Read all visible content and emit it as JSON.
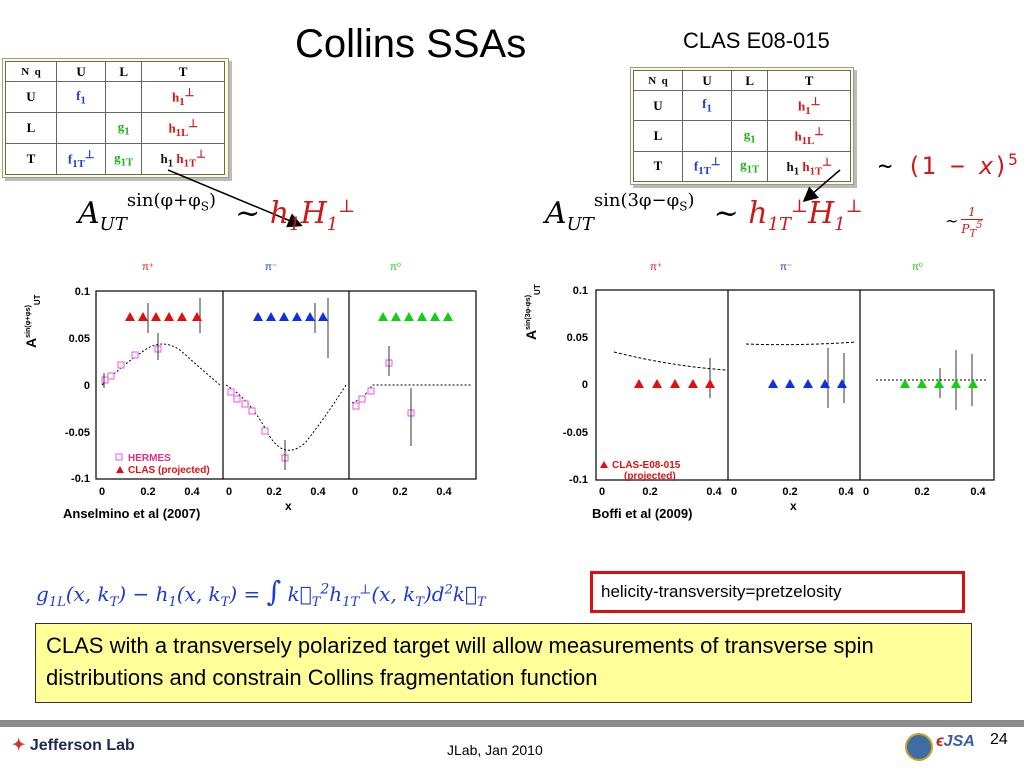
{
  "title": "Collins SSAs",
  "experiment": "CLAS E08-015",
  "table": {
    "header": [
      "N",
      "q",
      "U",
      "L",
      "T"
    ],
    "rows": [
      {
        "label": "U",
        "cells": [
          "f1",
          "",
          "h1⊥"
        ]
      },
      {
        "label": "L",
        "cells": [
          "",
          "g1",
          "h1L⊥"
        ]
      },
      {
        "label": "T",
        "cells": [
          "f1T⊥",
          "g1T",
          "h1  h1T⊥"
        ]
      }
    ]
  },
  "formula_left": "A_UT^{sin(φ+φS)} ~ h1 H1⊥",
  "formula_right": "A_UT^{sin(3φ−φS)} ~ h1T⊥ H1⊥",
  "scaling1": "~ (1 − x)^5",
  "scaling2": "~ 1/P_T^5",
  "left_plot": {
    "citation": "Anselmino et al (2007)",
    "panels": [
      "π+",
      "π-",
      "π0"
    ],
    "ylabel": "A_UT^sin(φ+φs)",
    "xlabel": "x",
    "yticks": [
      "0.1",
      "0.05",
      "0",
      "-0.05",
      "-0.1"
    ],
    "xticks": [
      "0",
      "0.2",
      "0.4"
    ],
    "legend": [
      "HERMES",
      "CLAS (projected)"
    ]
  },
  "right_plot": {
    "citation": "Boffi et al (2009)",
    "panels": [
      "π+",
      "π-",
      "π0"
    ],
    "ylabel": "A_UT^sin(3φ-φs)",
    "xlabel": "x",
    "yticks": [
      "0.1",
      "0.05",
      "0",
      "-0.05",
      "-0.1"
    ],
    "xticks": [
      "0",
      "0.2",
      "0.4"
    ],
    "legend": [
      "CLAS-E08-015 (projected)"
    ]
  },
  "bottom_formula": "g1L(x,kT) − h1(x,kT) = ∫ kT² h1T⊥(x,kT) d²kT",
  "red_box": "helicity-transversity=pretzelosity",
  "yellow_box": "CLAS with a transversely polarized target will allow measurements of transverse spin distributions and constrain Collins fragmentation function",
  "footer": {
    "logo": "Jefferson Lab",
    "date": "JLab, Jan 2010",
    "page": "24",
    "jsa": "JSA"
  },
  "colors": {
    "pi_plus": "#e01010",
    "pi_minus": "#1030e0",
    "pi_zero": "#10d010",
    "hermes": "#ee66ee"
  }
}
